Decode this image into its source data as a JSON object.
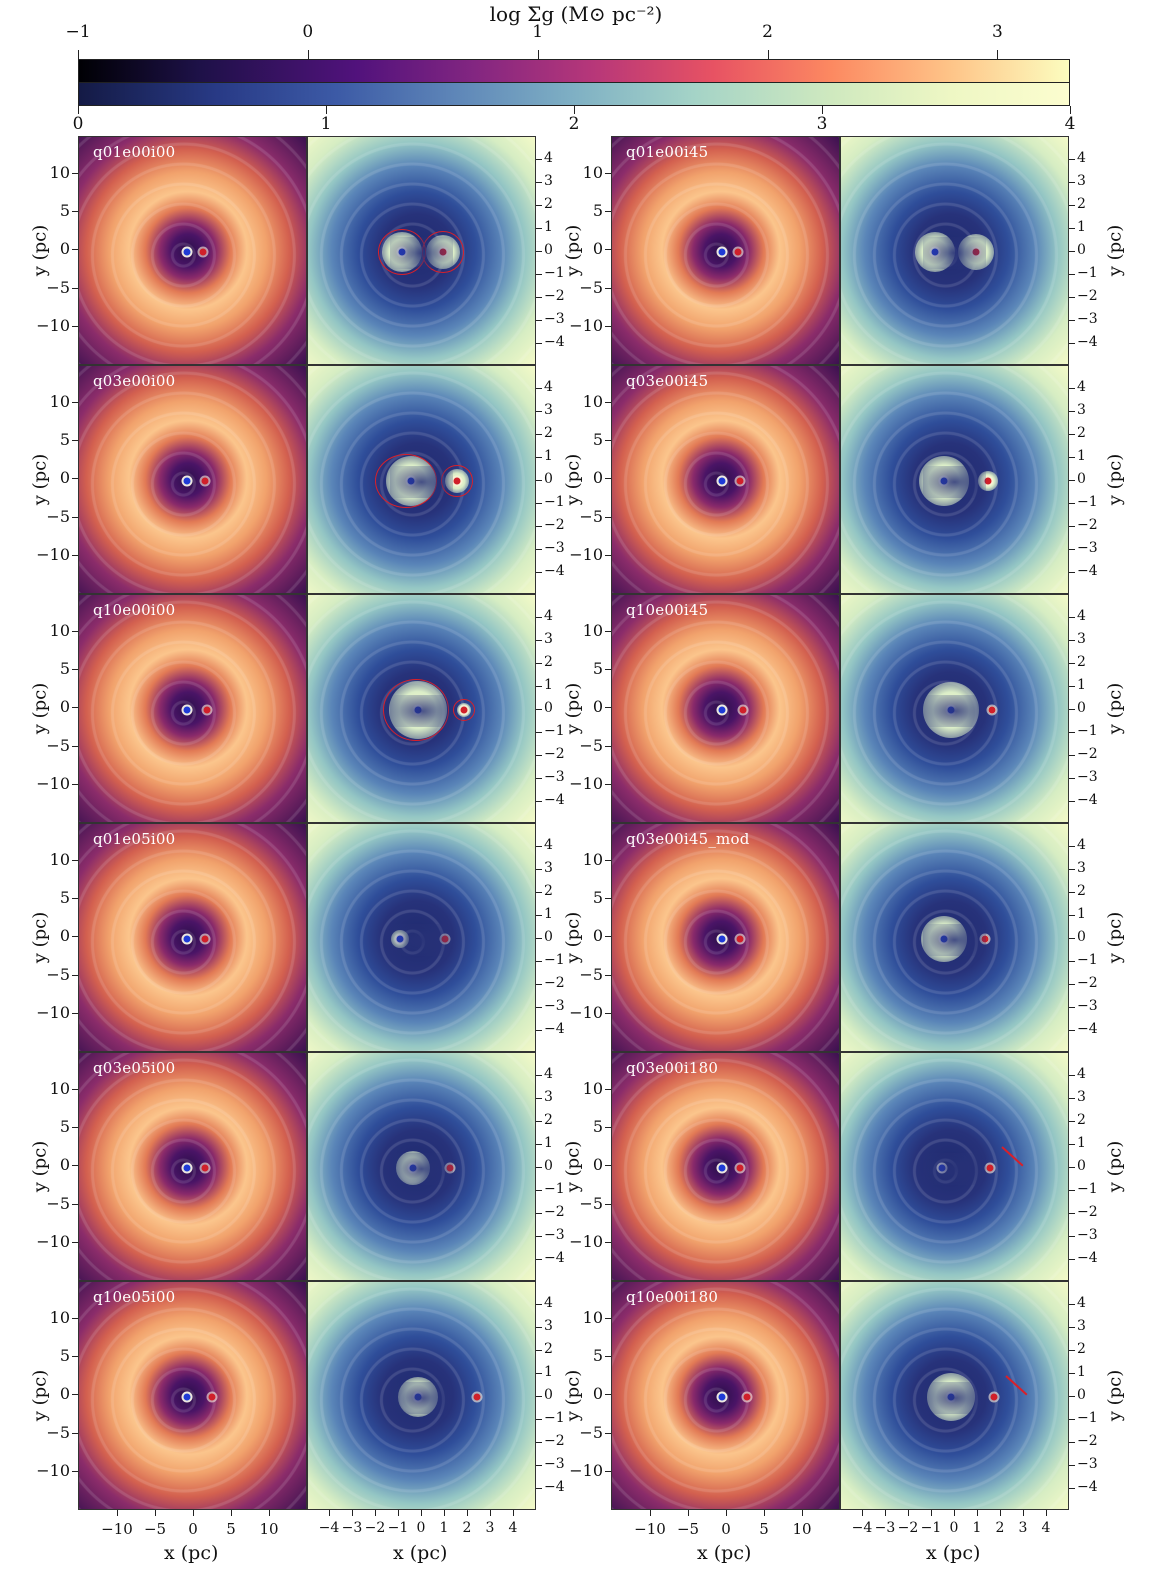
{
  "colorbar": {
    "title": "log Σ_g (M_⊙ pc^-2)",
    "title_text": "log Σg (M⊙ pc⁻²)",
    "top_ticks": [
      "−1",
      "0",
      "1",
      "2",
      "3"
    ],
    "bottom_ticks": [
      "0",
      "1",
      "2",
      "3",
      "4"
    ],
    "top_colormap": "magma",
    "bottom_colormap": "YlGnBu_r"
  },
  "axes": {
    "ylabel": "y (pc)",
    "xlabel": "x (pc)",
    "y_ticks_large": [
      "10",
      "5",
      "0",
      "−5",
      "−10"
    ],
    "x_ticks_large": [
      "−10",
      "−5",
      "0",
      "5",
      "10"
    ],
    "y_ticks_small": [
      "4",
      "3",
      "2",
      "1",
      "0",
      "−1",
      "−2",
      "−3",
      "−4"
    ],
    "x_ticks_small": [
      "−4",
      "−3",
      "−2",
      "−1",
      "0",
      "1",
      "2",
      "3",
      "4"
    ]
  },
  "panels_left": [
    "q01e00i00",
    "q03e00i00",
    "q10e00i00",
    "q01e05i00",
    "q03e05i00",
    "q10e05i00"
  ],
  "panels_right": [
    "q01e00i45",
    "q03e00i45",
    "q10e00i45",
    "q03e00i45_mod",
    "q03e00i180",
    "q10e00i180"
  ],
  "colors": {
    "primary_bh": "#1f3bd6",
    "secondary_bh": "#d0202a",
    "roche_lobe": "#d8202a"
  }
}
